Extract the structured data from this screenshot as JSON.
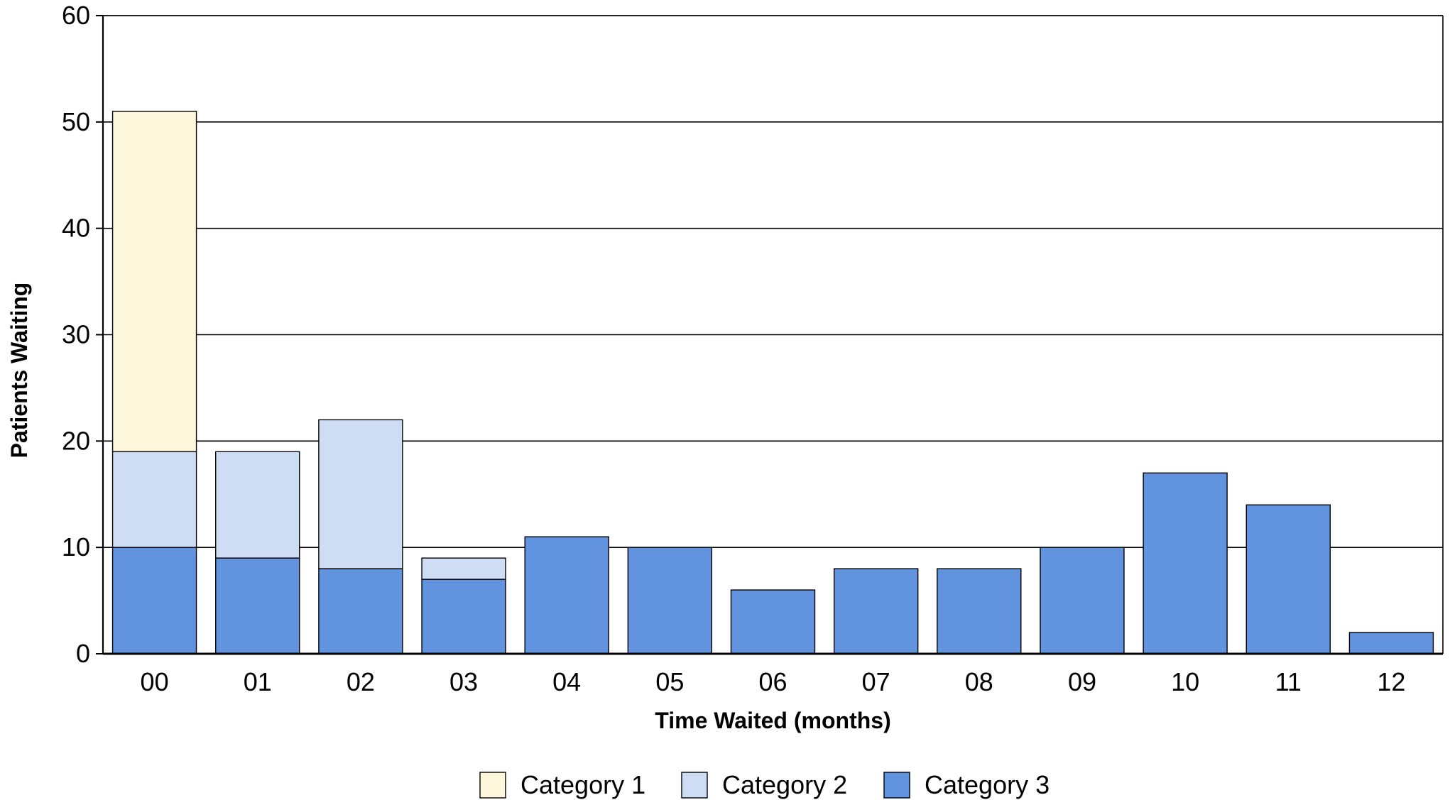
{
  "chart_data": {
    "type": "bar",
    "stacked": true,
    "title": "",
    "xlabel": "Time Waited (months)",
    "ylabel": "Patients Waiting",
    "ylim": [
      0,
      60
    ],
    "yticks": [
      0,
      10,
      20,
      30,
      40,
      50,
      60
    ],
    "grid": true,
    "legend_position": "bottom",
    "categories": [
      "00",
      "01",
      "02",
      "03",
      "04",
      "05",
      "06",
      "07",
      "08",
      "09",
      "10",
      "11",
      "12"
    ],
    "series": [
      {
        "name": "Category 3",
        "color": "#6193de",
        "values": [
          10,
          9,
          8,
          7,
          11,
          10,
          6,
          8,
          8,
          10,
          17,
          14,
          2
        ]
      },
      {
        "name": "Category 2",
        "color": "#cfddf4",
        "values": [
          9,
          10,
          14,
          2,
          0,
          0,
          0,
          0,
          0,
          0,
          0,
          0,
          0
        ]
      },
      {
        "name": "Category 1",
        "color": "#fdf8dc",
        "values": [
          32,
          0,
          0,
          0,
          0,
          0,
          0,
          0,
          0,
          0,
          0,
          0,
          0
        ]
      }
    ],
    "legend_order": [
      "Category 1",
      "Category 2",
      "Category 3"
    ]
  }
}
